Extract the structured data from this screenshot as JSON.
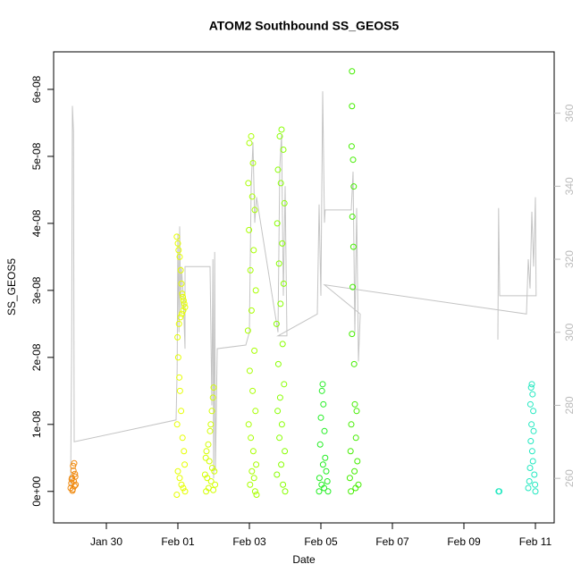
{
  "chart_data": {
    "type": "scatter",
    "title": "ATOM2 Southbound SS_GEOS5",
    "x_label": "Date",
    "y_label": "SS_GEOS5",
    "xlim": [
      28.525,
      42.525
    ],
    "xticks": [
      {
        "value": 30,
        "label": "Jan 30"
      },
      {
        "value": 32,
        "label": "Feb 01"
      },
      {
        "value": 34,
        "label": "Feb 03"
      },
      {
        "value": 36,
        "label": "Feb 05"
      },
      {
        "value": 38,
        "label": "Feb 07"
      },
      {
        "value": 40,
        "label": "Feb 09"
      },
      {
        "value": 42,
        "label": "Feb 11"
      }
    ],
    "ylim": [
      -4.7e-09,
      6.56e-08
    ],
    "yticks": [
      {
        "value": 0,
        "label": "0e+00"
      },
      {
        "value": 1e-08,
        "label": "1e-08"
      },
      {
        "value": 2e-08,
        "label": "2e-08"
      },
      {
        "value": 3e-08,
        "label": "3e-08"
      },
      {
        "value": 4e-08,
        "label": "4e-08"
      },
      {
        "value": 5e-08,
        "label": "5e-08"
      },
      {
        "value": 6e-08,
        "label": "6e-08"
      }
    ],
    "y2lim": [
      247.8,
      376.8
    ],
    "y2ticks": [
      260,
      280,
      300,
      320,
      340,
      360
    ],
    "y2_color": "#bbbbbb",
    "series": [
      {
        "color": "#f08a10",
        "x": [
          29.0,
          29.02,
          29.04,
          29.06,
          29.08,
          29.1,
          29.12,
          29.14,
          29.03,
          29.07,
          29.11,
          29.13,
          29.05,
          29.09
        ],
        "values": [
          5e-10,
          1.2e-09,
          2e-09,
          3e-10,
          3.1e-09,
          4.2e-09,
          2.6e-09,
          1e-09,
          1.8e-09,
          3.8e-09,
          8e-10,
          2.2e-09,
          1e-10,
          1.5e-09
        ]
      },
      {
        "color": "#e6ff00",
        "x": [
          31.97,
          32.0,
          32.02,
          32.05,
          32.08,
          32.1,
          32.12,
          32.14,
          32.16,
          32.18,
          32.2,
          32.15,
          32.11,
          32.07,
          32.03,
          31.99,
          32.01,
          32.04,
          32.06,
          32.09,
          31.98,
          32.13,
          32.17,
          32.19,
          32.0,
          32.05,
          32.1,
          32.15,
          32.2,
          31.97
        ],
        "values": [
          3.8e-08,
          3.7e-08,
          3.6e-08,
          3.5e-08,
          3.3e-08,
          3.1e-08,
          2.95e-08,
          2.9e-08,
          2.85e-08,
          2.8e-08,
          2.75e-08,
          2.7e-08,
          2.65e-08,
          2.6e-08,
          2.5e-08,
          2.3e-08,
          2e-08,
          1.7e-08,
          1.5e-08,
          1.2e-08,
          1e-08,
          8e-09,
          6e-09,
          4e-09,
          3e-09,
          2e-09,
          1e-09,
          5e-10,
          0,
          -5e-10
        ]
      },
      {
        "color": "#d4ff00",
        "x": [
          33.0,
          32.98,
          32.95,
          32.92,
          32.9,
          32.85,
          32.8,
          32.78,
          32.88,
          32.96,
          33.02,
          32.76,
          32.82,
          32.93,
          33.04,
          32.86,
          32.99,
          32.79
        ],
        "values": [
          1.55e-08,
          1.4e-08,
          1.2e-08,
          1e-08,
          9e-09,
          7e-09,
          6e-09,
          5e-09,
          4.5e-09,
          3.5e-09,
          3e-09,
          2.5e-09,
          2e-09,
          1.5e-09,
          1e-09,
          5e-10,
          2e-10,
          0
        ]
      },
      {
        "color": "#a8ff00",
        "x": [
          34.05,
          34.0,
          34.1,
          33.97,
          34.08,
          34.15,
          33.99,
          34.12,
          34.03,
          34.18,
          34.06,
          33.96,
          34.14,
          34.01,
          34.09,
          34.17,
          33.98,
          34.04,
          34.11,
          34.19,
          34.07,
          34.13,
          34.02,
          34.16,
          34.2
        ],
        "values": [
          5.3e-08,
          5.2e-08,
          4.9e-08,
          4.6e-08,
          4.4e-08,
          4.2e-08,
          3.9e-08,
          3.6e-08,
          3.3e-08,
          3e-08,
          2.7e-08,
          2.4e-08,
          2.1e-08,
          1.8e-08,
          1.5e-08,
          1.2e-08,
          1e-08,
          8e-09,
          6e-09,
          4e-09,
          3e-09,
          2e-09,
          1e-09,
          0,
          -5e-10
        ]
      },
      {
        "color": "#88ff00",
        "x": [
          34.9,
          34.85,
          34.95,
          34.8,
          34.88,
          34.98,
          34.78,
          34.92,
          34.83,
          34.96,
          34.87,
          34.76,
          34.93,
          34.81,
          34.97,
          34.86,
          34.79,
          34.91,
          34.84,
          34.99,
          34.89,
          34.77,
          34.94,
          35.0
        ],
        "values": [
          5.4e-08,
          5.3e-08,
          5.1e-08,
          4.8e-08,
          4.6e-08,
          4.3e-08,
          4e-08,
          3.7e-08,
          3.4e-08,
          3.1e-08,
          2.8e-08,
          2.5e-08,
          2.2e-08,
          1.9e-08,
          1.6e-08,
          1.4e-08,
          1.2e-08,
          1e-08,
          8e-09,
          6e-09,
          4e-09,
          2.5e-09,
          1e-09,
          0
        ]
      },
      {
        "color": "#22ee22",
        "x": [
          36.05,
          36.03,
          36.07,
          36.0,
          36.1,
          35.98,
          36.12,
          36.06,
          36.15,
          35.96,
          36.18,
          36.02,
          36.09,
          36.2,
          35.95
        ],
        "values": [
          1.6e-08,
          1.5e-08,
          1.3e-08,
          1.1e-08,
          9e-09,
          7e-09,
          5e-09,
          4e-09,
          3e-09,
          2e-09,
          1.5e-09,
          1e-09,
          5e-10,
          0,
          0
        ]
      },
      {
        "color": "#44ee00",
        "x": [
          36.87,
          36.87,
          36.86,
          36.9,
          36.92,
          36.88,
          36.91,
          36.89,
          36.87,
          36.93,
          36.95,
          37.0,
          36.85,
          36.98,
          36.83,
          37.02,
          36.94,
          36.81,
          37.05,
          36.97,
          36.84
        ],
        "values": [
          6.27e-08,
          5.75e-08,
          5.15e-08,
          4.95e-08,
          4.55e-08,
          4.1e-08,
          3.65e-08,
          3.05e-08,
          2.35e-08,
          1.9e-08,
          1.3e-08,
          1.2e-08,
          1e-08,
          8e-09,
          6e-09,
          4.5e-09,
          3e-09,
          2e-09,
          1e-09,
          5e-10,
          0
        ]
      },
      {
        "color": "#22e8c0",
        "x": [
          40.97,
          40.99,
          41.9,
          41.88,
          41.92,
          41.86,
          41.94,
          41.89,
          41.95,
          41.87,
          41.91,
          41.93,
          41.85,
          41.97,
          41.83,
          41.99,
          41.8,
          42.0
        ],
        "values": [
          0,
          0,
          1.6e-08,
          1.55e-08,
          1.45e-08,
          1.3e-08,
          1.2e-08,
          1e-08,
          9e-09,
          7.5e-09,
          6e-09,
          4.5e-09,
          3.5e-09,
          2.5e-09,
          1.5e-09,
          1e-09,
          5e-10,
          0
        ]
      },
      {
        "type": "line",
        "axis": "y2",
        "color": "#c4c4c4",
        "x": [
          29.0,
          29.03,
          29.05,
          29.08,
          29.1,
          31.95,
          31.98,
          32.0,
          32.03,
          32.05,
          32.08,
          32.1,
          32.15,
          32.2,
          32.2,
          32.9,
          32.95,
          32.98,
          33.0,
          33.03,
          33.05,
          33.1,
          33.9,
          34.0,
          34.05,
          34.1,
          34.15,
          34.2,
          34.8,
          34.85,
          34.9,
          34.95,
          35.0,
          35.05,
          34.8,
          35.9,
          35.95,
          36.0,
          36.05,
          36.1,
          36.12,
          36.85,
          36.9,
          36.95,
          37.0,
          37.05,
          37.1,
          36.1,
          41.75,
          41.8,
          41.85,
          41.9,
          41.95,
          42.0,
          42.02,
          41.0,
          40.97,
          40.95
        ],
        "values": [
          258,
          296,
          362,
          355,
          270,
          276,
          290,
          327,
          300,
          329,
          305,
          318,
          310,
          295.5,
          318,
          318,
          280,
          320,
          260,
          322,
          262,
          295.5,
          296.5,
          300,
          340,
          352,
          330,
          337,
          300,
          345,
          354,
          310,
          340,
          299,
          299,
          305,
          335,
          310,
          366,
          330,
          333.5,
          333.5,
          344,
          300,
          334,
          292,
          305,
          313,
          305,
          320,
          312,
          333,
          318,
          337,
          310,
          310,
          334,
          298
        ]
      }
    ]
  }
}
